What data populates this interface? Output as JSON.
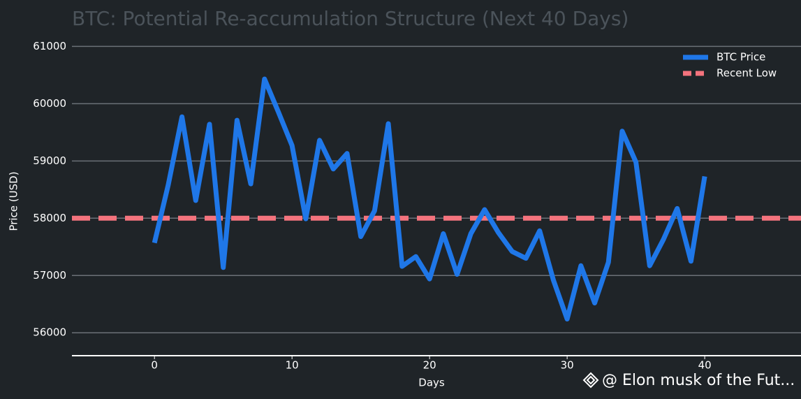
{
  "chart_data": {
    "type": "line",
    "title": "BTC: Potential Re-accumulation Structure (Next 40 Days)",
    "x_label": "Days",
    "y_label": "Price (USD)",
    "x": [
      0,
      1,
      2,
      3,
      4,
      5,
      6,
      7,
      8,
      9,
      10,
      11,
      12,
      13,
      14,
      15,
      16,
      17,
      18,
      19,
      20,
      21,
      22,
      23,
      24,
      25,
      26,
      27,
      28,
      29,
      30,
      31,
      32,
      33,
      34,
      35,
      36,
      37,
      38,
      39,
      40
    ],
    "series": [
      {
        "name": "BTC Price",
        "color": "#1f77e8",
        "values": [
          57570,
          58580,
          59770,
          58310,
          59640,
          57140,
          59710,
          58600,
          60430,
          59860,
          59270,
          57990,
          59360,
          58860,
          59130,
          57680,
          58130,
          59650,
          57160,
          57330,
          56940,
          57730,
          57020,
          57730,
          58150,
          57750,
          57420,
          57300,
          57780,
          56920,
          56240,
          57170,
          56520,
          57230,
          59520,
          58980,
          57170,
          57630,
          58170,
          57250,
          58730
        ]
      }
    ],
    "reference_lines": [
      {
        "name": "Recent Low",
        "value": 58000,
        "color": "#f4737d"
      }
    ],
    "xlim": [
      -6,
      47
    ],
    "ylim": [
      55600,
      61200
    ],
    "xticks": [
      0,
      10,
      20,
      30,
      40
    ],
    "yticks": [
      56000,
      57000,
      58000,
      59000,
      60000,
      61000
    ],
    "grid": true,
    "legend": "upper right"
  },
  "watermark": "@ Elon musk of the Fut..."
}
